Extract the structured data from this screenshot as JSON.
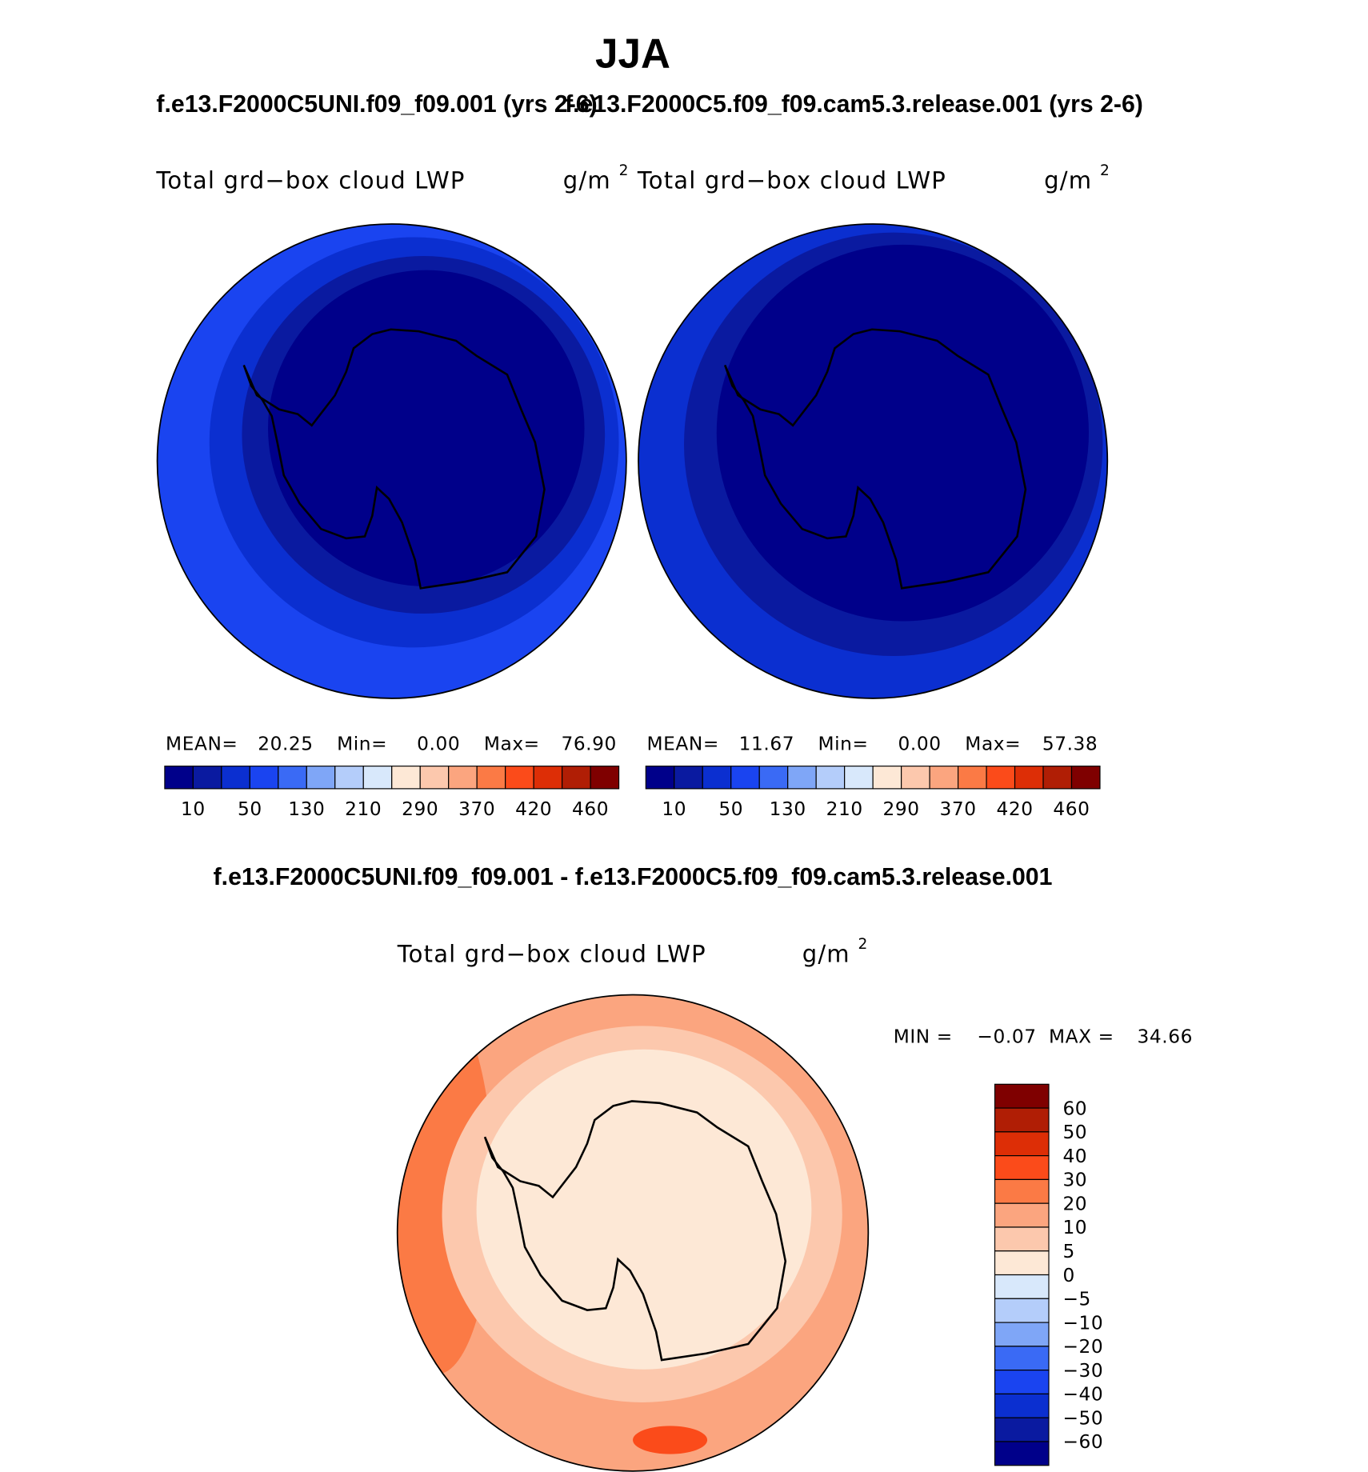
{
  "title": "JJA",
  "panels": [
    {
      "subtitle": "f.e13.F2000C5UNI.f09_f09.001 (yrs 2-6)",
      "label": "Total grd−box cloud LWP",
      "units": "g/m",
      "units_exponent": "2",
      "mean_label": "MEAN=",
      "mean": "20.25",
      "min_label": "Min=",
      "min": "0.00",
      "max_label": "Max=",
      "max": "76.90"
    },
    {
      "subtitle": "f.e13.F2000C5.f09_f09.cam5.3.release.001 (yrs 2-6)",
      "label": "Total grd−box cloud LWP",
      "units": "g/m",
      "units_exponent": "2",
      "mean_label": "MEAN=",
      "mean": "11.67",
      "min_label": "Min=",
      "min": "0.00",
      "max_label": "Max=",
      "max": "57.38"
    }
  ],
  "colorbar": {
    "colors": [
      "#00008a",
      "#0a1aa0",
      "#0b2fd0",
      "#1a44f0",
      "#3a6af5",
      "#7fa6f7",
      "#b4cdfa",
      "#d8e8fb",
      "#fde8d6",
      "#fcc8ad",
      "#fba57f",
      "#fb7a45",
      "#fb4b1a",
      "#dd2e06",
      "#b01e05",
      "#7f0000"
    ],
    "labels": [
      "10",
      "50",
      "130",
      "210",
      "290",
      "370",
      "420",
      "460"
    ]
  },
  "difference": {
    "title": "f.e13.F2000C5UNI.f09_f09.001 - f.e13.F2000C5.f09_f09.cam5.3.release.001",
    "label": "Total grd−box cloud LWP",
    "units": "g/m",
    "units_exponent": "2",
    "min_label": "MIN =",
    "min": "−0.07",
    "max_label": "MAX =",
    "max": "34.66",
    "colorbar": {
      "labels": [
        "60",
        "50",
        "40",
        "30",
        "20",
        "10",
        "5",
        "0",
        "−5",
        "−10",
        "−20",
        "−30",
        "−40",
        "−50",
        "−60"
      ]
    }
  }
}
